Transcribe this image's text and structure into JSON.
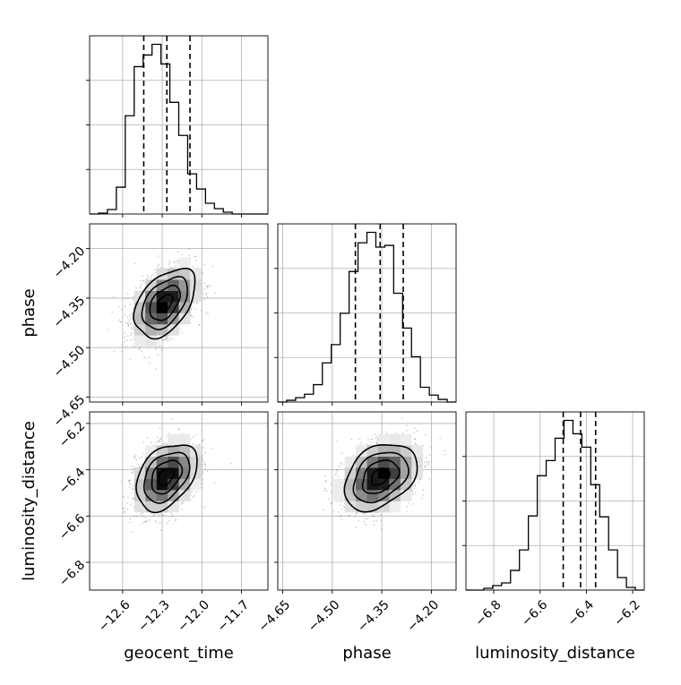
{
  "chart_data": {
    "type": "corner",
    "parameters": [
      "geocent_time",
      "phase",
      "luminosity_distance"
    ],
    "ranges": {
      "geocent_time": [
        -12.85,
        -11.5
      ],
      "phase": [
        -4.665,
        -4.125
      ],
      "luminosity_distance": [
        -6.92,
        -6.15
      ]
    },
    "ticks": {
      "geocent_time": [
        "-12.6",
        "-12.3",
        "-12.0",
        "-11.7"
      ],
      "phase": [
        "-4.65",
        "-4.50",
        "-4.35",
        "-4.20"
      ],
      "luminosity_distance": [
        "-6.8",
        "-6.6",
        "-6.4",
        "-6.2"
      ]
    },
    "tick_values": {
      "geocent_time": [
        -12.6,
        -12.3,
        -12.0,
        -11.7
      ],
      "phase": [
        -4.65,
        -4.5,
        -4.35,
        -4.2
      ],
      "luminosity_distance": [
        -6.8,
        -6.6,
        -6.4,
        -6.2
      ]
    },
    "labels": {
      "geocent_time": "geocent_time",
      "phase": "phase",
      "luminosity_distance": "luminosity_distance"
    },
    "grid": true,
    "histograms": {
      "geocent_time": {
        "edges": [
          -12.85,
          -12.7825,
          -12.715,
          -12.6475,
          -12.58,
          -12.5125,
          -12.445,
          -12.3775,
          -12.31,
          -12.2425,
          -12.175,
          -12.1075,
          -12.04,
          -11.9725,
          -11.905,
          -11.8375,
          -11.77,
          -11.7025,
          -11.635,
          -11.5675,
          -11.5
        ],
        "counts": [
          0,
          1,
          5,
          30,
          110,
          165,
          178,
          190,
          168,
          125,
          88,
          45,
          28,
          12,
          6,
          2,
          0,
          0,
          0,
          0
        ],
        "quantiles": [
          -12.44,
          -12.265,
          -12.09
        ]
      },
      "phase": {
        "edges": [
          -4.665,
          -4.638,
          -4.611,
          -4.584,
          -4.557,
          -4.53,
          -4.503,
          -4.476,
          -4.449,
          -4.422,
          -4.395,
          -4.368,
          -4.341,
          -4.314,
          -4.287,
          -4.26,
          -4.233,
          -4.206,
          -4.179,
          -4.152,
          -4.125
        ],
        "counts": [
          0,
          2,
          5,
          9,
          20,
          45,
          66,
          102,
          150,
          183,
          195,
          178,
          180,
          125,
          85,
          52,
          17,
          8,
          3,
          0
        ],
        "quantiles": [
          -4.43,
          -4.355,
          -4.285
        ]
      },
      "luminosity_distance": {
        "edges": [
          -6.92,
          -6.8815,
          -6.843,
          -6.8045,
          -6.766,
          -6.7275,
          -6.689,
          -6.6505,
          -6.612,
          -6.5735,
          -6.535,
          -6.4965,
          -6.458,
          -6.4195,
          -6.381,
          -6.3425,
          -6.304,
          -6.2655,
          -6.227,
          -6.1885,
          -6.15
        ],
        "counts": [
          0,
          0,
          2,
          5,
          8,
          22,
          45,
          83,
          128,
          145,
          170,
          190,
          175,
          160,
          118,
          82,
          45,
          14,
          3,
          0
        ],
        "quantiles": [
          -6.5,
          -6.425,
          -6.36
        ]
      }
    },
    "pairs": [
      {
        "x": "geocent_time",
        "y": "phase",
        "center": [
          -12.28,
          -4.365
        ],
        "sigma": [
          0.115,
          0.052
        ],
        "rho": 0.45
      },
      {
        "x": "geocent_time",
        "y": "luminosity_distance",
        "center": [
          -12.27,
          -6.43
        ],
        "sigma": [
          0.115,
          0.072
        ],
        "rho": 0.38
      },
      {
        "x": "phase",
        "y": "luminosity_distance",
        "center": [
          -4.355,
          -6.43
        ],
        "sigma": [
          0.055,
          0.072
        ],
        "rho": 0.35
      }
    ],
    "contour_levels_sigma": [
      0.5,
      1.0,
      1.5,
      2.0
    ]
  }
}
